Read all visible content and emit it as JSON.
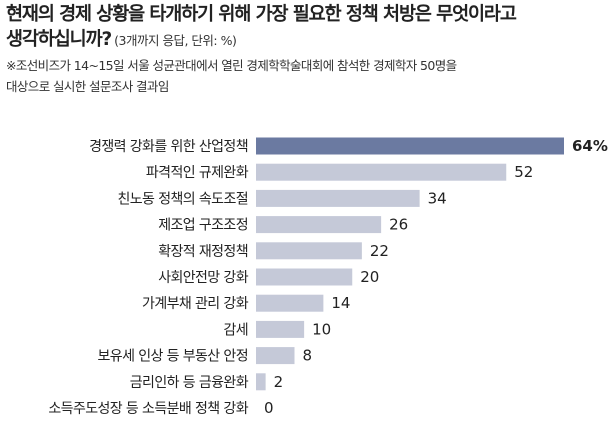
{
  "question": {
    "line1": "현재의 경제 상황을 타개하기 위해 가장 필요한 정책 처방은 무엇이라고",
    "line2": "생각하십니까?",
    "sub": "(3개까지 응답, 단위: %)"
  },
  "note": {
    "line1": "※조선비즈가 14~15일 서울 성균관대에서 열린 경제학학술대회에 참석한 경제학자 50명을",
    "line2": "대상으로 실시한 설문조사 결과임"
  },
  "colors": {
    "highlight_bar": "#6b7aa1",
    "bar": "#c5c9d8"
  },
  "chart_data": {
    "type": "bar",
    "orientation": "horizontal",
    "unit": "%",
    "categories": [
      "경쟁력 강화를 위한 산업정책",
      "파격적인 규제완화",
      "친노동 정책의 속도조절",
      "제조업 구조조정",
      "확장적 재정정책",
      "사회안전망 강화",
      "가계부채 관리 강화",
      "감세",
      "보유세 인상 등 부동산 안정",
      "금리인하 등 금융완화",
      "소득주도성장 등 소득분배 정책 강화"
    ],
    "values": [
      64,
      52,
      34,
      26,
      22,
      20,
      14,
      10,
      8,
      2,
      0
    ],
    "value_labels": [
      "64%",
      "52",
      "34",
      "26",
      "22",
      "20",
      "14",
      "10",
      "8",
      "2",
      "0"
    ],
    "highlight_index": 0,
    "xlim": [
      0,
      64
    ]
  }
}
